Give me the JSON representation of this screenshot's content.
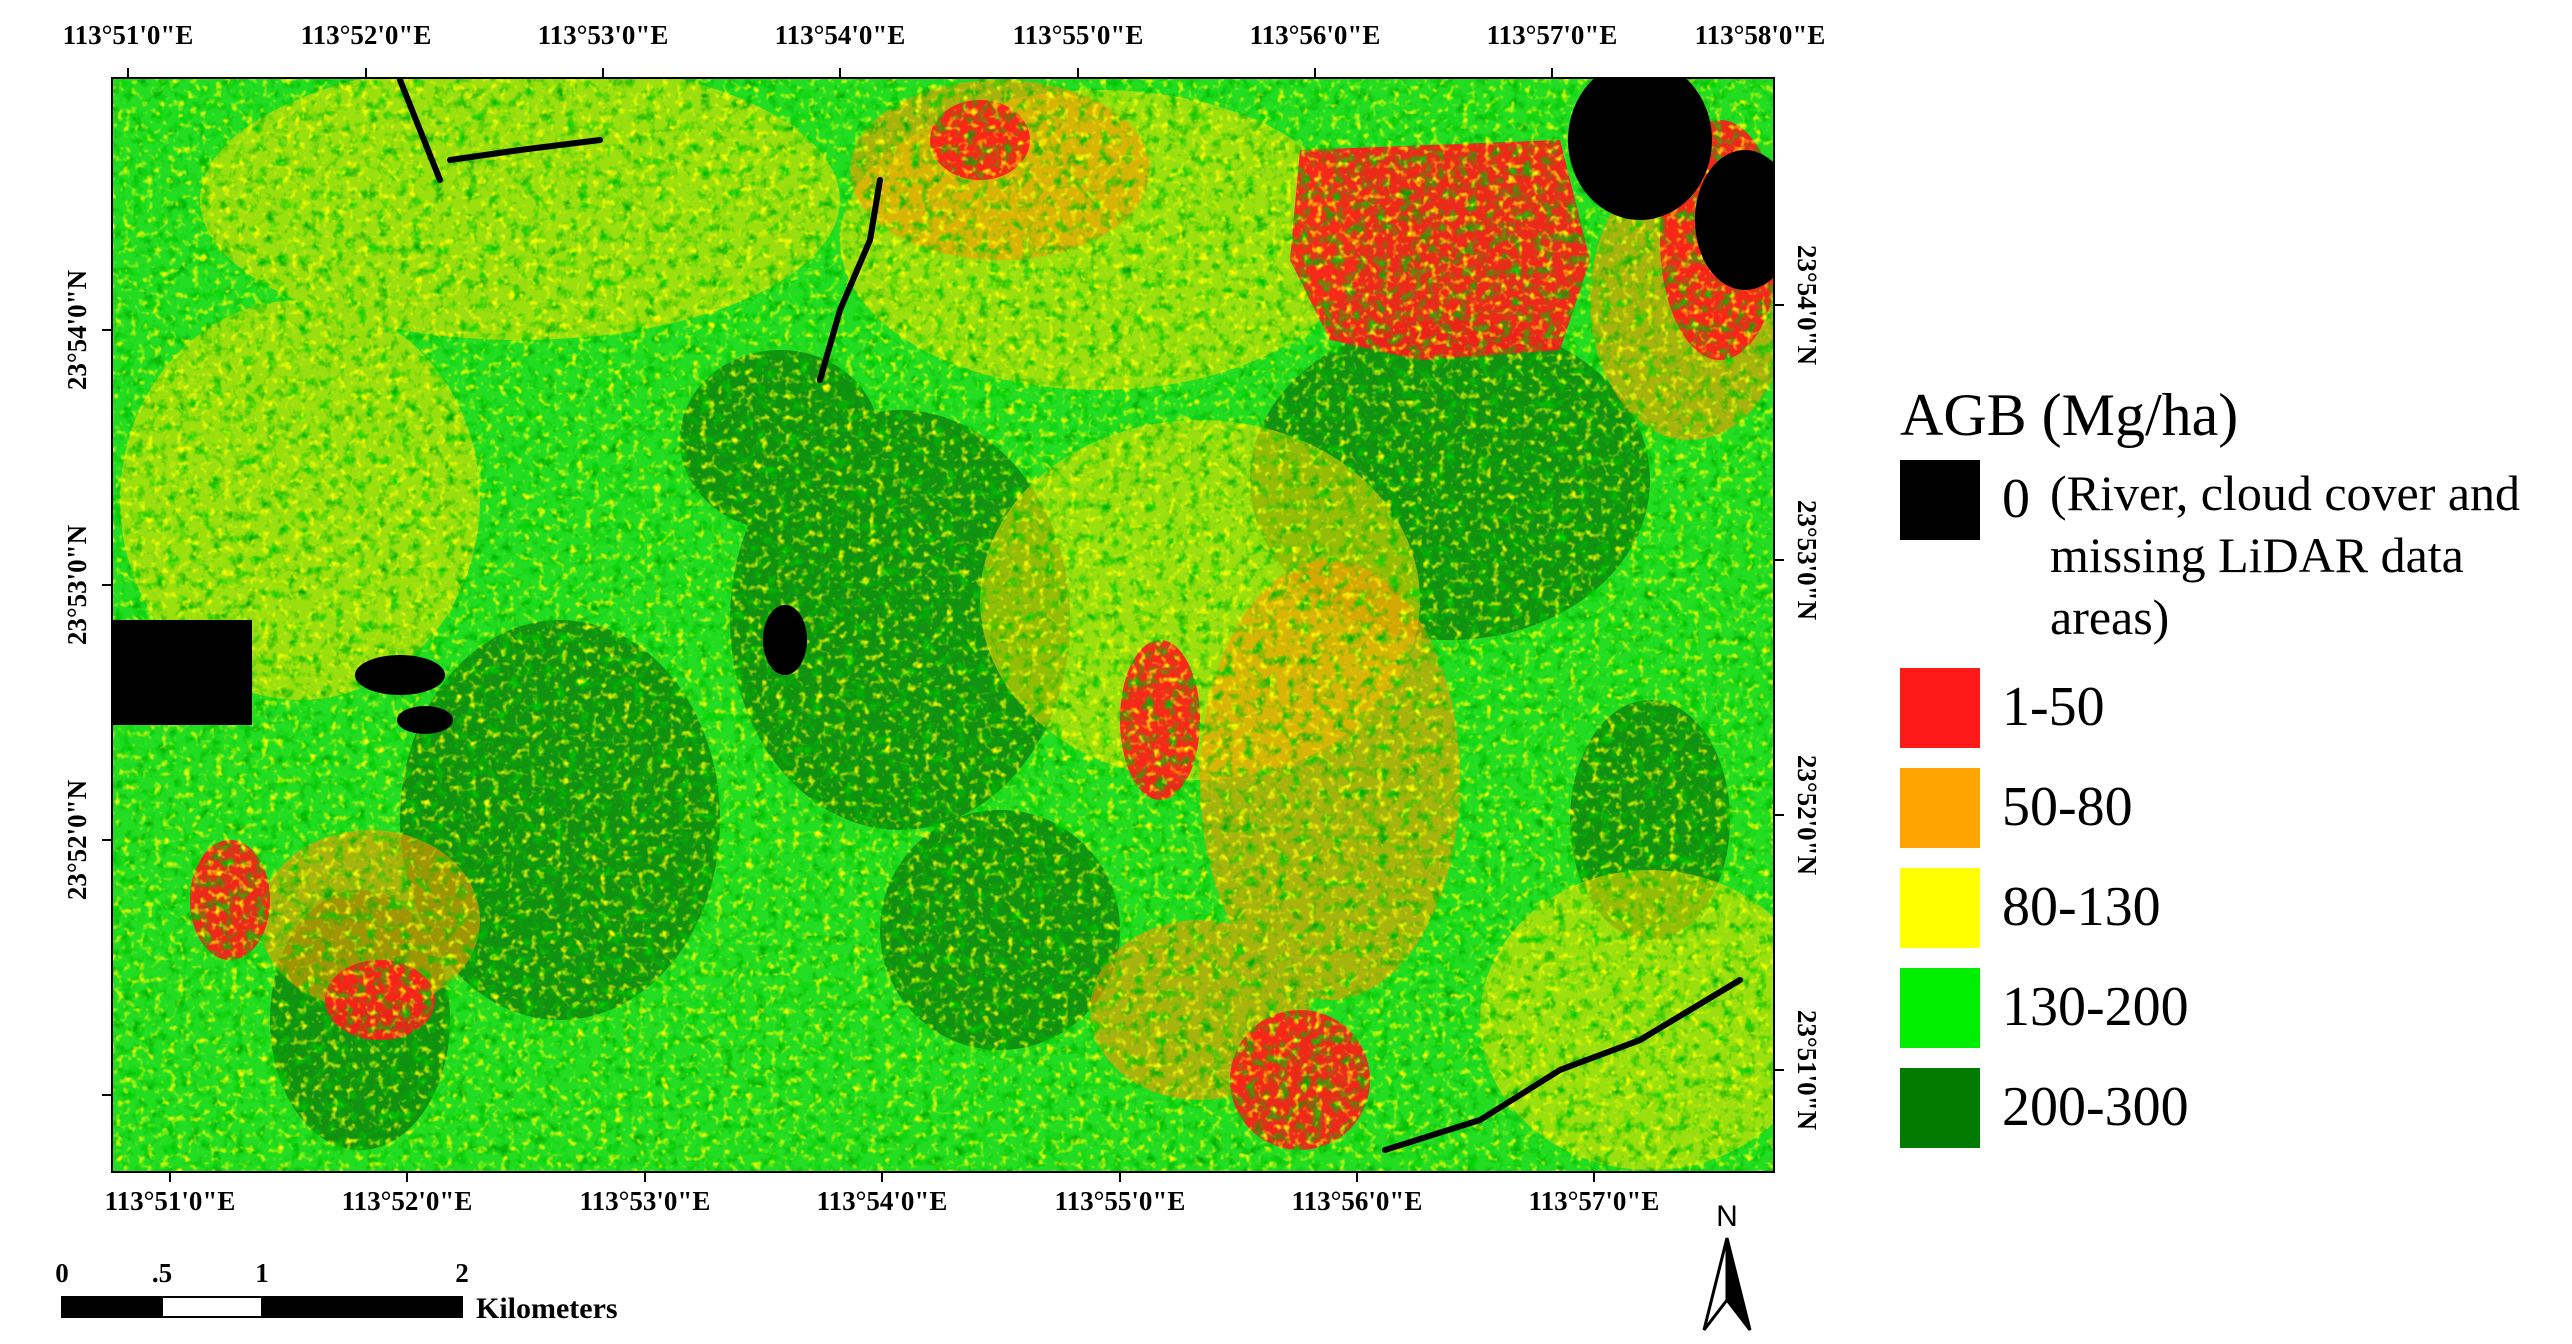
{
  "map": {
    "top_ticks": [
      "113°51'0\"E",
      "113°52'0\"E",
      "113°53'0\"E",
      "113°54'0\"E",
      "113°55'0\"E",
      "113°56'0\"E",
      "113°57'0\"E",
      "113°58'0\"E"
    ],
    "bottom_ticks": [
      "113°51'0\"E",
      "113°52'0\"E",
      "113°53'0\"E",
      "113°54'0\"E",
      "113°55'0\"E",
      "113°56'0\"E",
      "113°57'0\"E"
    ],
    "left_ticks": [
      "23°54'0\"N",
      "23°53'0\"N",
      "23°52'0\"N"
    ],
    "right_ticks": [
      "23°54'0\"N",
      "23°53'0\"N",
      "23°52'0\"N",
      "23°51'0\"N"
    ]
  },
  "legend": {
    "title": "AGB (Mg/ha)",
    "classes": [
      {
        "label": "0",
        "note": "(River, cloud cover and missing LiDAR data areas)",
        "color": "#000000"
      },
      {
        "label": "1-50",
        "color": "#ff1a1a"
      },
      {
        "label": "50-80",
        "color": "#ffa500"
      },
      {
        "label": "80-130",
        "color": "#ffff00"
      },
      {
        "label": "130-200",
        "color": "#00ee00"
      },
      {
        "label": "200-300",
        "color": "#007a00"
      }
    ]
  },
  "scale_bar": {
    "ticks": [
      "0",
      ".5",
      "1",
      "2"
    ],
    "unit": "Kilometers"
  },
  "north_arrow": {
    "label": "N"
  }
}
